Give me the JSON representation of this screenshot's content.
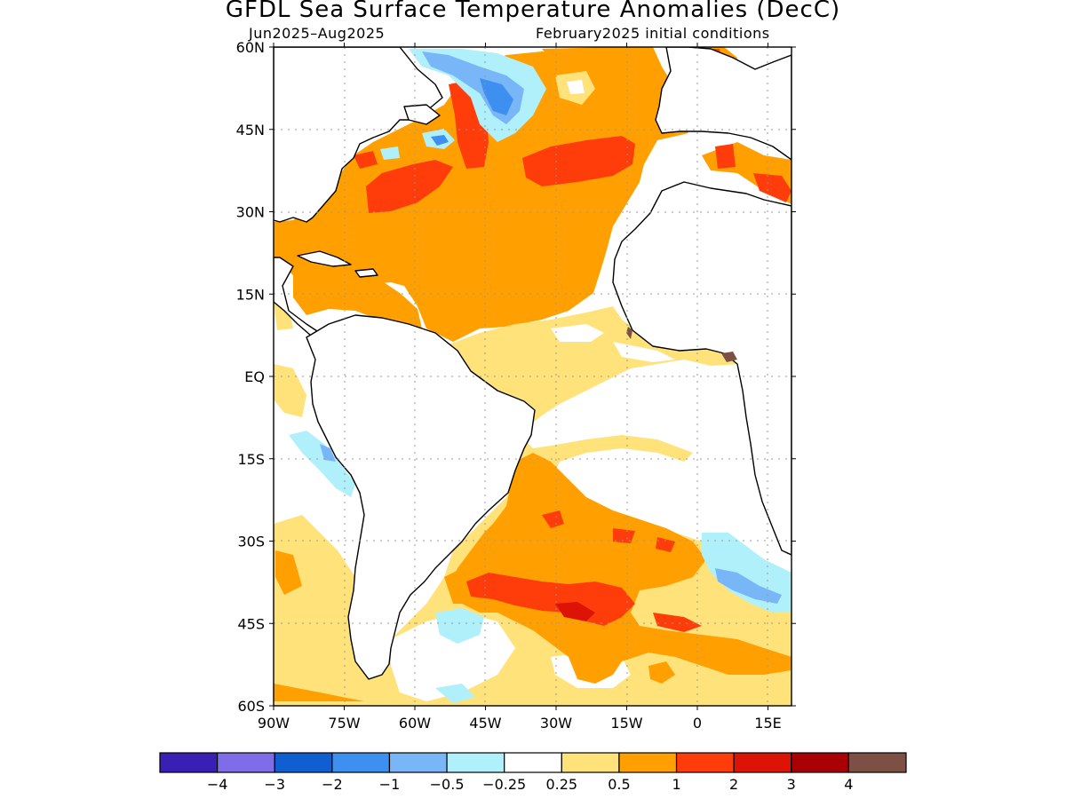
{
  "header": {
    "title": "GFDL Sea Surface Temperature Anomalies (DecC)",
    "period": "Jun2025–Aug2025",
    "init": "February2025 initial conditions"
  },
  "axes": {
    "lat_labels": [
      "60N",
      "45N",
      "30N",
      "15N",
      "EQ",
      "15S",
      "30S",
      "45S",
      "60S"
    ],
    "lon_labels": [
      "90W",
      "75W",
      "60W",
      "45W",
      "30W",
      "15W",
      "0",
      "15E"
    ],
    "lat_range": [
      -60,
      60
    ],
    "lon_range": [
      -90,
      20
    ],
    "grid": "dotted"
  },
  "colorbar": {
    "colors": [
      "#3a1fb4",
      "#7f6ce8",
      "#0f5fd0",
      "#3d8ff0",
      "#79b6f7",
      "#b0f0fa",
      "#ffffff",
      "#ffe27a",
      "#ff9f00",
      "#ff3d0a",
      "#dd1306",
      "#a90005",
      "#7c5044"
    ],
    "labels": [
      "−4",
      "−3",
      "−2",
      "−1",
      "−0.5",
      "−0.25",
      "0.25",
      "0.5",
      "1",
      "2",
      "3",
      "4"
    ]
  }
}
